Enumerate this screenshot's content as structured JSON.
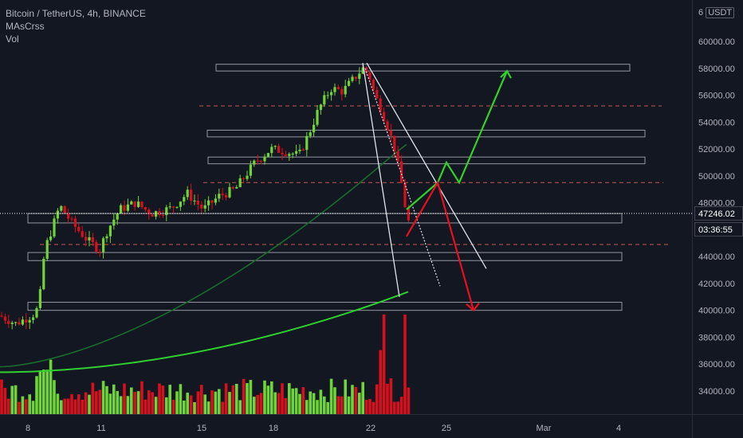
{
  "legend": {
    "title": "Bitcoin / TetherUS, 4h, BINANCE",
    "indicator": "MAsCrss",
    "volume": "Vol"
  },
  "price_axis": {
    "currency": "USDT",
    "currency_prefix": "6",
    "current_price": "47246.02",
    "countdown": "03:36:55"
  },
  "colors": {
    "background": "#131722",
    "up": "#6fd33a",
    "down": "#d6101c",
    "ma_long": "#2fcf2f",
    "ma_short": "#1b6b2e",
    "zone": "#9598a1",
    "level": "#c2584c",
    "forecast_up": "#2fd42a",
    "forecast_down": "#e8101e",
    "trendline": "#e0e3eb"
  },
  "chart_data": {
    "type": "candlestick",
    "symbol": "BTCUSDT",
    "timeframe": "4h",
    "x_ticks": [
      "8",
      "11",
      "15",
      "18",
      "22",
      "25",
      "Mar",
      "4"
    ],
    "y_ticks": [
      "34000.00",
      "36000.00",
      "38000.00",
      "40000.00",
      "42000.00",
      "44000.00",
      "46000.00",
      "48000.00",
      "50000.00",
      "52000.00",
      "54000.00",
      "56000.00",
      "58000.00",
      "60000.00"
    ],
    "ylim": [
      32000,
      62000
    ],
    "resistance_zones": [
      {
        "from": 57800,
        "to": 58300
      },
      {
        "from": 52900,
        "to": 53400
      },
      {
        "from": 50900,
        "to": 51400
      },
      {
        "from": 46500,
        "to": 47200
      },
      {
        "from": 43700,
        "to": 44300
      },
      {
        "from": 40000,
        "to": 40600
      }
    ],
    "dashed_levels": [
      55200,
      49500,
      44900
    ],
    "forecast": {
      "bullish_path": [
        47500,
        49500,
        51000,
        49500,
        57800
      ],
      "bearish_path": [
        45500,
        49500,
        40000
      ]
    },
    "series": [
      {
        "name": "MAsCrss",
        "type": "moving_average"
      },
      {
        "name": "Vol",
        "type": "volume"
      }
    ]
  }
}
